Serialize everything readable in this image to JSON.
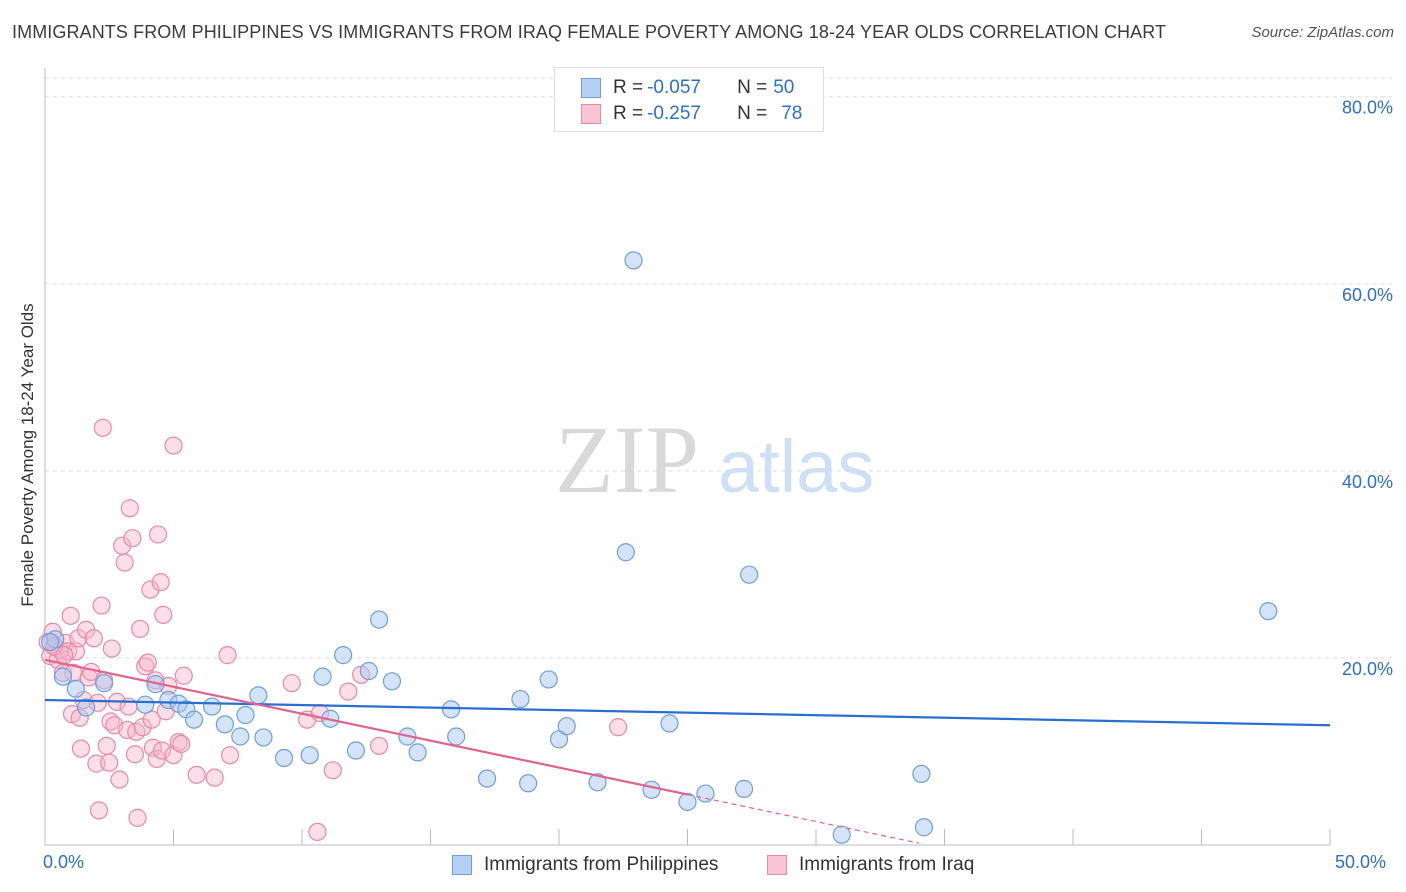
{
  "title": "IMMIGRANTS FROM PHILIPPINES VS IMMIGRANTS FROM IRAQ FEMALE POVERTY AMONG 18-24 YEAR OLDS CORRELATION CHART",
  "source": "Source: ZipAtlas.com",
  "watermark": {
    "zip": "ZIP",
    "atlas": "atlas"
  },
  "colors": {
    "blue_fill": "#a9c8f0",
    "blue_stroke": "#6f9fdc",
    "blue_line": "#2a6fcf",
    "pink_fill": "#f6b6c9",
    "pink_stroke": "#e98aa8",
    "pink_line": "#e0648f",
    "axis_label": "#2f6fcc",
    "grid": "#dddddd"
  },
  "legend_top": {
    "series1": {
      "r_label": "R = ",
      "r_value": "-0.057",
      "n_label": "N = ",
      "n_value": "50"
    },
    "series2": {
      "r_label": "R = ",
      "r_value": "-0.257",
      "n_label": "N = ",
      "n_value": "78"
    }
  },
  "legend_bottom": {
    "series1": "Immigrants from Philippines",
    "series2": "Immigrants from Iraq"
  },
  "chart_data": {
    "type": "scatter",
    "title": "IMMIGRANTS FROM PHILIPPINES VS IMMIGRANTS FROM IRAQ FEMALE POVERTY AMONG 18-24 YEAR OLDS CORRELATION CHART",
    "xlabel": "",
    "ylabel": "Female Poverty Among 18-24 Year Olds",
    "xlim": [
      0,
      50
    ],
    "ylim": [
      0,
      82
    ],
    "x_tick_labels": {
      "min": "0.0%",
      "max": "50.0%"
    },
    "y_ticks": [
      20,
      40,
      60,
      80
    ],
    "y_tick_labels": [
      "20.0%",
      "40.0%",
      "60.0%",
      "80.0%"
    ],
    "grid": true,
    "series": [
      {
        "name": "Immigrants from Philippines",
        "color": "#a9c8f0",
        "r": -0.057,
        "n": 50,
        "trend": {
          "x": [
            0,
            50
          ],
          "y": [
            15.5,
            12.8
          ],
          "dash_from": null
        },
        "points": [
          [
            0.4,
            22
          ],
          [
            0.7,
            18
          ],
          [
            1.2,
            16.7
          ],
          [
            1.6,
            14.7
          ],
          [
            2.3,
            17.3
          ],
          [
            3.9,
            15
          ],
          [
            4.3,
            17.2
          ],
          [
            4.8,
            15.5
          ],
          [
            5.2,
            15.1
          ],
          [
            5.5,
            14.5
          ],
          [
            5.8,
            13.4
          ],
          [
            6.5,
            14.8
          ],
          [
            7.0,
            12.9
          ],
          [
            7.6,
            11.6
          ],
          [
            7.8,
            13.9
          ],
          [
            8.3,
            16
          ],
          [
            8.5,
            11.5
          ],
          [
            9.3,
            9.3
          ],
          [
            10.3,
            9.6
          ],
          [
            10.8,
            18
          ],
          [
            11.1,
            13.5
          ],
          [
            11.6,
            20.3
          ],
          [
            12.1,
            10.1
          ],
          [
            12.6,
            18.6
          ],
          [
            13.0,
            24.1
          ],
          [
            13.5,
            17.5
          ],
          [
            14.1,
            11.6
          ],
          [
            14.5,
            9.9
          ],
          [
            15.8,
            14.5
          ],
          [
            16.0,
            11.6
          ],
          [
            17.2,
            7.1
          ],
          [
            18.5,
            15.6
          ],
          [
            18.8,
            6.6
          ],
          [
            19.6,
            17.7
          ],
          [
            20.0,
            11.3
          ],
          [
            20.3,
            12.7
          ],
          [
            21.5,
            6.7
          ],
          [
            22.6,
            31.3
          ],
          [
            22.9,
            62.5
          ],
          [
            23.6,
            5.9
          ],
          [
            24.3,
            13.0
          ],
          [
            25.0,
            4.6
          ],
          [
            25.7,
            5.5
          ],
          [
            27.2,
            6.0
          ],
          [
            27.4,
            28.9
          ],
          [
            31.0,
            1.1
          ],
          [
            34.2,
            1.9
          ],
          [
            34.1,
            7.6
          ],
          [
            47.6,
            25.0
          ],
          [
            0.2,
            21.7
          ]
        ]
      },
      {
        "name": "Immigrants from Iraq",
        "color": "#f6b6c9",
        "r": -0.257,
        "n": 78,
        "trend": {
          "x": [
            0,
            25,
            34
          ],
          "y": [
            19.8,
            5.4,
            0.2
          ],
          "dash_from": 25
        },
        "points": [
          [
            0.1,
            21.7
          ],
          [
            0.2,
            20.2
          ],
          [
            0.3,
            22.8
          ],
          [
            0.4,
            21.3
          ],
          [
            0.5,
            19.8
          ],
          [
            0.6,
            20.8
          ],
          [
            0.7,
            18.4
          ],
          [
            0.8,
            21.6
          ],
          [
            0.9,
            20.7
          ],
          [
            1.0,
            24.5
          ],
          [
            1.05,
            14.0
          ],
          [
            1.1,
            18.4
          ],
          [
            1.2,
            20.7
          ],
          [
            1.3,
            22.1
          ],
          [
            1.35,
            13.6
          ],
          [
            1.4,
            10.3
          ],
          [
            1.5,
            15.5
          ],
          [
            1.6,
            23.0
          ],
          [
            1.7,
            17.9
          ],
          [
            1.8,
            18.5
          ],
          [
            1.9,
            22.1
          ],
          [
            2.0,
            8.7
          ],
          [
            2.05,
            15.2
          ],
          [
            2.1,
            3.7
          ],
          [
            2.2,
            25.6
          ],
          [
            2.25,
            44.6
          ],
          [
            2.3,
            17.6
          ],
          [
            2.4,
            10.6
          ],
          [
            2.5,
            8.8
          ],
          [
            2.55,
            13.2
          ],
          [
            2.6,
            21.0
          ],
          [
            2.7,
            12.8
          ],
          [
            2.8,
            15.3
          ],
          [
            2.9,
            7.0
          ],
          [
            3.0,
            32.0
          ],
          [
            3.1,
            30.2
          ],
          [
            3.2,
            12.3
          ],
          [
            3.25,
            14.8
          ],
          [
            3.3,
            36.0
          ],
          [
            3.4,
            32.8
          ],
          [
            3.5,
            9.7
          ],
          [
            3.55,
            12.1
          ],
          [
            3.6,
            2.9
          ],
          [
            3.7,
            23.1
          ],
          [
            3.8,
            12.6
          ],
          [
            3.9,
            19.1
          ],
          [
            4.0,
            19.5
          ],
          [
            4.1,
            27.3
          ],
          [
            4.15,
            13.4
          ],
          [
            4.2,
            10.4
          ],
          [
            4.3,
            17.6
          ],
          [
            4.35,
            9.2
          ],
          [
            4.4,
            33.2
          ],
          [
            4.5,
            28.1
          ],
          [
            4.55,
            10.1
          ],
          [
            4.6,
            24.6
          ],
          [
            4.7,
            14.3
          ],
          [
            4.8,
            17.0
          ],
          [
            5.0,
            9.6
          ],
          [
            5.2,
            11.0
          ],
          [
            5.0,
            42.7
          ],
          [
            5.3,
            10.8
          ],
          [
            5.4,
            18.1
          ],
          [
            5.9,
            7.5
          ],
          [
            6.6,
            7.2
          ],
          [
            7.1,
            20.3
          ],
          [
            7.2,
            9.6
          ],
          [
            9.6,
            17.3
          ],
          [
            10.2,
            13.4
          ],
          [
            10.6,
            1.4
          ],
          [
            10.7,
            14.1
          ],
          [
            11.2,
            8.0
          ],
          [
            11.8,
            16.4
          ],
          [
            12.3,
            18.2
          ],
          [
            13.0,
            10.6
          ],
          [
            22.3,
            12.6
          ],
          [
            0.35,
            21.2
          ],
          [
            0.75,
            20.3
          ]
        ]
      }
    ]
  }
}
